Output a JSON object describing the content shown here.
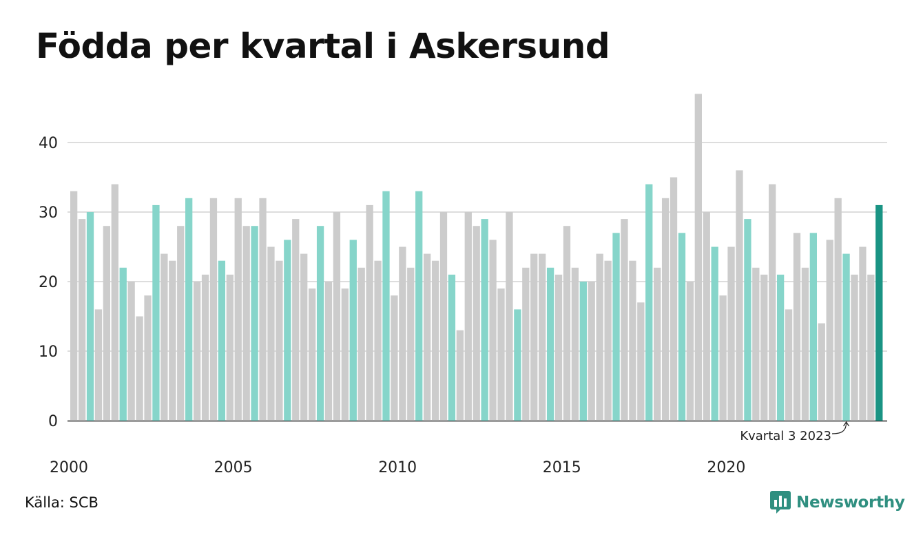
{
  "header": {
    "title": "Födda per kvartal i Askersund"
  },
  "footer": {
    "source": "Källa: SCB",
    "brand": "Newsworthy"
  },
  "colors": {
    "grey": "#cccccc",
    "q3": "#86d5ca",
    "latest": "#1a9484",
    "grid": "#dddddd",
    "axis": "#222222",
    "brand": "#2f8f80"
  },
  "chart_data": {
    "type": "bar",
    "title": "Födda per kvartal i Askersund",
    "start_year": 2000,
    "values": [
      33,
      29,
      30,
      16,
      28,
      34,
      22,
      20,
      15,
      18,
      31,
      24,
      23,
      28,
      32,
      20,
      21,
      32,
      23,
      21,
      32,
      28,
      28,
      32,
      25,
      23,
      26,
      29,
      24,
      19,
      28,
      20,
      30,
      19,
      26,
      22,
      31,
      23,
      33,
      18,
      25,
      22,
      33,
      24,
      23,
      30,
      21,
      13,
      30,
      28,
      29,
      26,
      19,
      30,
      16,
      22,
      24,
      24,
      22,
      21,
      28,
      22,
      20,
      20,
      24,
      23,
      27,
      29,
      23,
      17,
      34,
      22,
      32,
      35,
      27,
      20,
      47,
      30,
      25,
      18,
      25,
      36,
      29,
      22,
      21,
      34,
      21,
      16,
      27,
      22,
      27,
      14,
      26,
      32,
      24,
      21,
      25,
      21,
      31
    ],
    "highlight": "Q3 (kvartal 3) of each year",
    "latest_index": 98,
    "x_ticks": [
      "2000",
      "2005",
      "2010",
      "2015",
      "2020"
    ],
    "y_ticks": [
      0,
      10,
      20,
      30,
      40
    ],
    "ylim": [
      0,
      47
    ],
    "annotation": "Kvartal 3 2023",
    "grid": true
  }
}
